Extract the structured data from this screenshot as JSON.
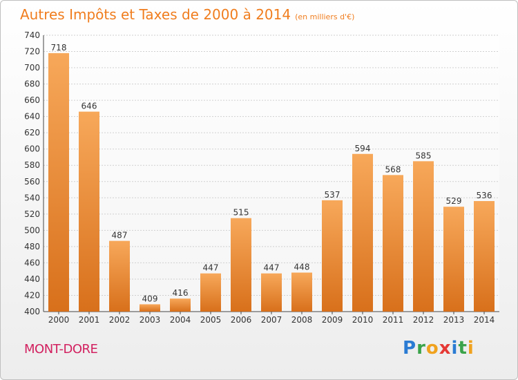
{
  "header": {
    "title": "Autres Impôts et Taxes de 2000 à 2014",
    "unit": "(en milliers d'€)"
  },
  "footer": {
    "commune": "MONT-DORE",
    "logo": "Proxiti"
  },
  "colors": {
    "title": "#f07d1e",
    "commune": "#d2205f",
    "bar_light": "#f7a85a",
    "bar_dark": "#d8701b"
  },
  "chart_data": {
    "type": "bar",
    "categories": [
      "2000",
      "2001",
      "2002",
      "2003",
      "2004",
      "2005",
      "2006",
      "2007",
      "2008",
      "2009",
      "2010",
      "2011",
      "2012",
      "2013",
      "2014"
    ],
    "values": [
      718,
      646,
      487,
      409,
      416,
      447,
      515,
      447,
      448,
      537,
      594,
      568,
      585,
      529,
      536
    ],
    "title": "Autres Impôts et Taxes de 2000 à 2014",
    "ylim": [
      400,
      740
    ],
    "yticks": [
      400,
      420,
      440,
      460,
      480,
      500,
      520,
      540,
      560,
      580,
      600,
      620,
      640,
      660,
      680,
      700,
      720,
      740
    ],
    "grid": true
  }
}
